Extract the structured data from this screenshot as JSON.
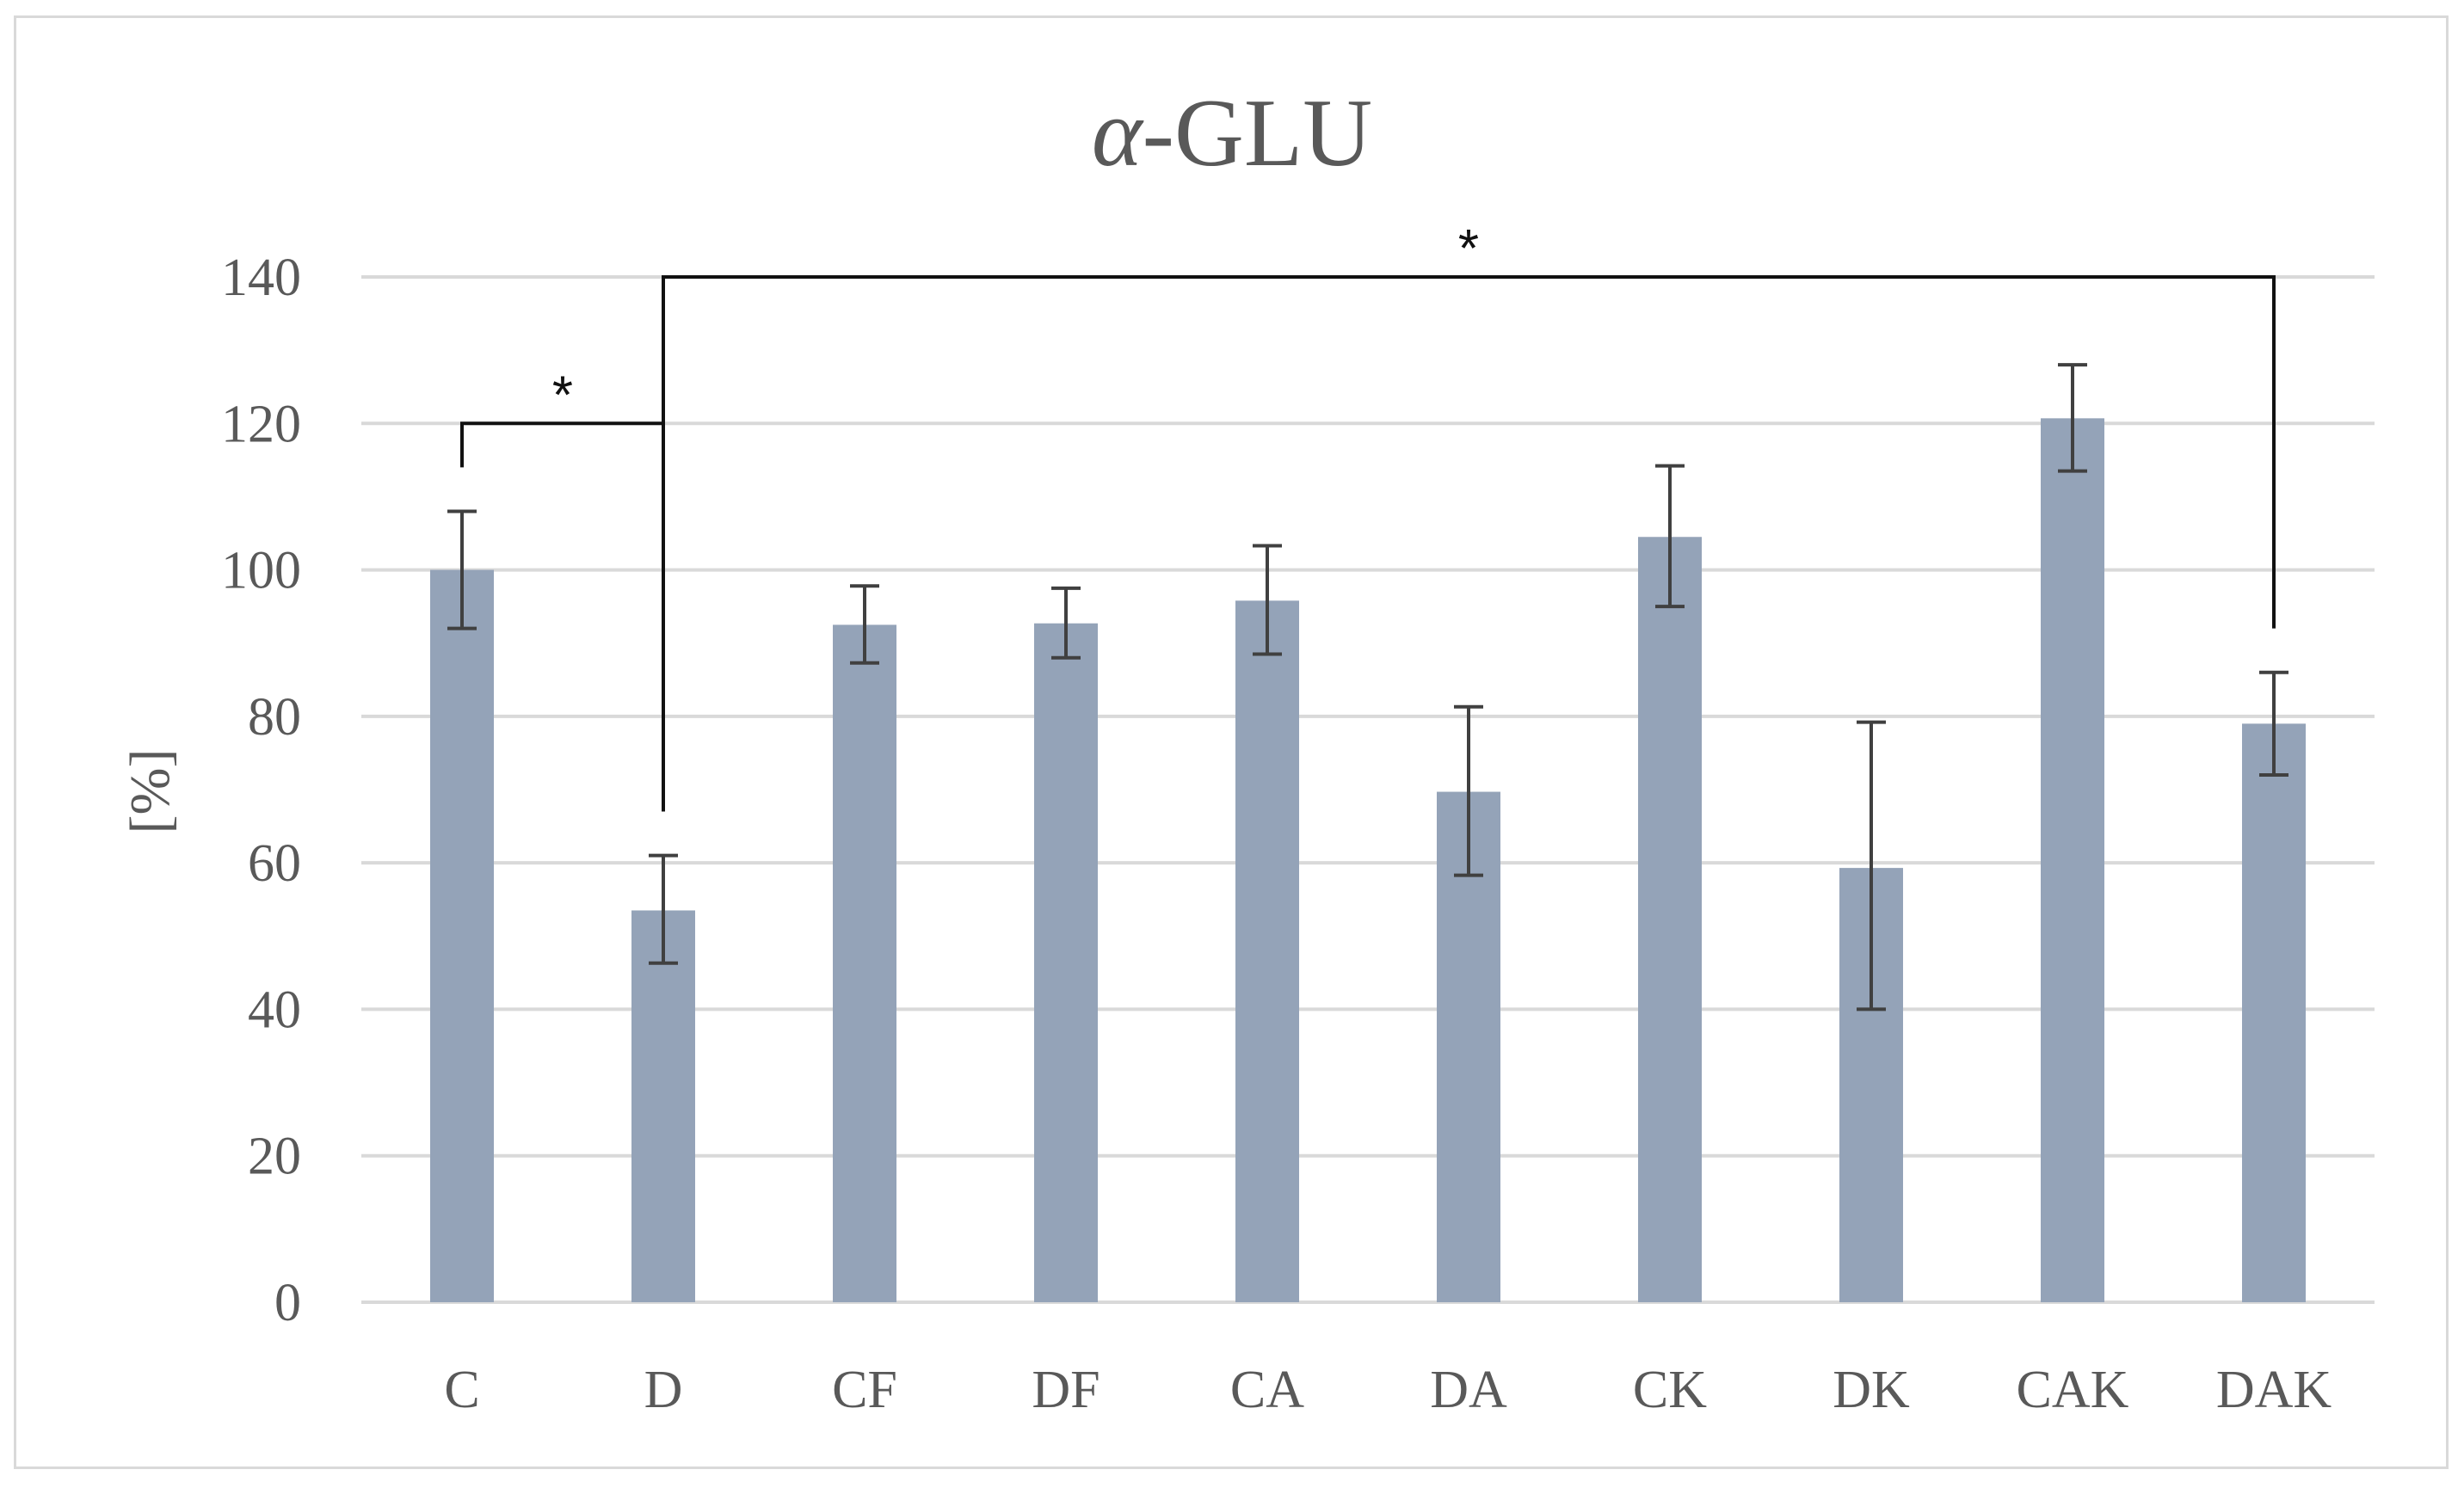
{
  "chart_data": {
    "type": "bar",
    "title_prefix": "α",
    "title_suffix": "-GLU",
    "ylabel": "[%]",
    "xlabel": "",
    "ylim": [
      0,
      140
    ],
    "yticks": [
      "0",
      "20",
      "40",
      "60",
      "80",
      "100",
      "120",
      "140"
    ],
    "categories": [
      "C",
      "D",
      "CF",
      "DF",
      "CA",
      "DA",
      "CK",
      "DK",
      "CAK",
      "DAK"
    ],
    "values": [
      100,
      53.5,
      92.5,
      92.7,
      95.8,
      69.7,
      104.5,
      59.3,
      120.7,
      79
    ],
    "error_low": [
      92,
      46.3,
      87.3,
      88,
      88.5,
      58.3,
      95,
      40,
      113.5,
      72
    ],
    "error_high": [
      108,
      61,
      97.8,
      97.5,
      103.3,
      81.3,
      114.2,
      79.2,
      128,
      86
    ],
    "grid": true,
    "legend": "none",
    "bar_color": "#94a3b8",
    "grid_color": "#d9d9d9",
    "significance": [
      {
        "from": "C",
        "to": "D",
        "label": "*"
      },
      {
        "from": "D",
        "to": "DAK",
        "label": "*"
      }
    ]
  }
}
